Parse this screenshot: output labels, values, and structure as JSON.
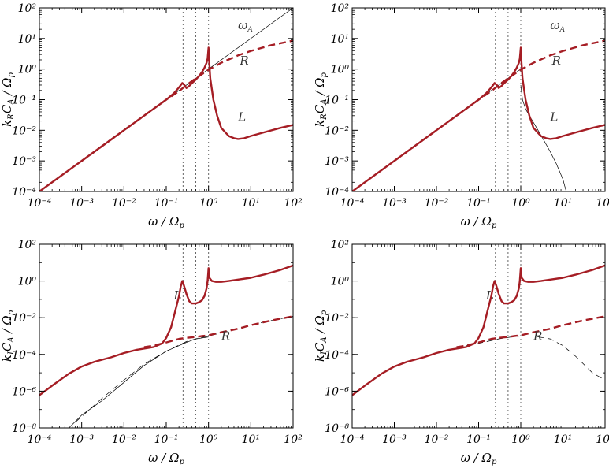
{
  "chart_data": [
    {
      "type": "line",
      "xscale": "log",
      "yscale": "log",
      "xlim": [
        0.0001,
        100
      ],
      "ylim": [
        0.0001,
        100
      ],
      "xlabel": "ω / Ωp",
      "ylabel": "kRCA / Ωp",
      "x_ticks": [
        0.0001,
        0.001,
        0.01,
        0.1,
        1,
        10,
        100
      ],
      "y_ticks": [
        0.0001,
        0.001,
        0.01,
        0.1,
        1,
        10,
        100
      ],
      "vlines": [
        0.25,
        0.5,
        1.0
      ],
      "annotations": [
        {
          "text": "ωA",
          "x": 5.0,
          "y": 20
        },
        {
          "text": "R",
          "x": 5.5,
          "y": 1.4
        },
        {
          "text": "L",
          "x": 5.0,
          "y": 0.02
        }
      ],
      "series": [
        {
          "style": "thin",
          "x": [
            0.0001,
            100
          ],
          "y": [
            0.0001,
            100
          ]
        },
        {
          "style": "thick-dashed",
          "x": [
            0.001,
            0.01,
            0.05,
            0.1,
            0.2,
            0.3,
            0.5,
            1.0,
            2.0,
            5.0,
            10,
            30,
            100
          ],
          "y": [
            0.001,
            0.01,
            0.05,
            0.1,
            0.19,
            0.3,
            0.5,
            0.95,
            1.6,
            2.8,
            3.9,
            6.0,
            8.5
          ]
        },
        {
          "style": "thick-solid",
          "x": [
            0.0001,
            0.01,
            0.05,
            0.1,
            0.15,
            0.2,
            0.24,
            0.27,
            0.3,
            0.35,
            0.4,
            0.5,
            0.6,
            0.7,
            0.8,
            0.9,
            0.95,
            0.98,
            1.0,
            1.03,
            1.1,
            1.3,
            1.6,
            2.0,
            3.0,
            4.0,
            5.0,
            7.0,
            10,
            20,
            50,
            100
          ],
          "y": [
            0.0001,
            0.01,
            0.05,
            0.1,
            0.16,
            0.25,
            0.35,
            0.3,
            0.24,
            0.28,
            0.34,
            0.45,
            0.6,
            0.8,
            1.1,
            1.6,
            2.2,
            3.5,
            5.0,
            2.0,
            0.5,
            0.1,
            0.03,
            0.012,
            0.0065,
            0.0055,
            0.0052,
            0.0055,
            0.0065,
            0.0085,
            0.012,
            0.015
          ]
        }
      ]
    },
    {
      "type": "line",
      "xscale": "log",
      "yscale": "log",
      "xlim": [
        0.0001,
        100
      ],
      "ylim": [
        0.0001,
        100
      ],
      "xlabel": "ω / Ωp",
      "ylabel": "kRCA / Ωp",
      "x_ticks": [
        0.0001,
        0.001,
        0.01,
        0.1,
        1,
        10,
        100
      ],
      "y_ticks": [
        0.0001,
        0.001,
        0.01,
        0.1,
        1,
        10,
        100
      ],
      "vlines": [
        0.25,
        0.5,
        1.0
      ],
      "annotations": [
        {
          "text": "ωA",
          "x": 5.0,
          "y": 20
        },
        {
          "text": "R",
          "x": 5.5,
          "y": 1.4
        },
        {
          "text": "L",
          "x": 5.0,
          "y": 0.02
        }
      ],
      "series": [
        {
          "style": "thin",
          "x": [
            0.0001,
            0.3,
            0.6,
            0.8,
            0.9,
            0.95,
            0.98
          ],
          "y": [
            0.0001,
            0.3,
            0.6,
            0.8,
            0.9,
            0.95,
            0.98
          ]
        },
        {
          "style": "thin",
          "x": [
            1.0,
            1.1,
            1.3,
            1.6,
            2.0,
            3.0,
            5.0,
            7.0,
            10,
            12
          ],
          "y": [
            0.3,
            0.1,
            0.05,
            0.03,
            0.018,
            0.007,
            0.002,
            0.0008,
            0.00025,
            0.0001
          ]
        },
        {
          "style": "thick-dashed",
          "x": [
            0.001,
            0.01,
            0.05,
            0.1,
            0.2,
            0.3,
            0.5,
            1.0,
            2.0,
            5.0,
            10,
            30,
            100
          ],
          "y": [
            0.001,
            0.01,
            0.05,
            0.1,
            0.19,
            0.3,
            0.5,
            0.95,
            1.6,
            2.8,
            3.9,
            6.0,
            8.5
          ]
        },
        {
          "style": "thick-solid",
          "x": [
            0.0001,
            0.01,
            0.05,
            0.1,
            0.15,
            0.2,
            0.24,
            0.27,
            0.3,
            0.35,
            0.4,
            0.5,
            0.6,
            0.7,
            0.8,
            0.9,
            0.95,
            0.98,
            1.0,
            1.03,
            1.1,
            1.3,
            1.6,
            2.0,
            3.0,
            4.0,
            5.0,
            7.0,
            10,
            20,
            50,
            100
          ],
          "y": [
            0.0001,
            0.01,
            0.05,
            0.1,
            0.16,
            0.25,
            0.35,
            0.3,
            0.24,
            0.28,
            0.34,
            0.45,
            0.6,
            0.8,
            1.1,
            1.6,
            2.2,
            3.5,
            5.0,
            2.0,
            0.5,
            0.1,
            0.03,
            0.012,
            0.0065,
            0.0055,
            0.0052,
            0.0055,
            0.0065,
            0.0085,
            0.012,
            0.015
          ]
        }
      ]
    },
    {
      "type": "line",
      "xscale": "log",
      "yscale": "log",
      "xlim": [
        0.0001,
        100
      ],
      "ylim": [
        1e-08,
        100
      ],
      "xlabel": "ω / Ωp",
      "ylabel": "kICA / Ωp",
      "x_ticks": [
        0.0001,
        0.001,
        0.01,
        0.1,
        1,
        10,
        100
      ],
      "y_ticks": [
        1e-08,
        1e-06,
        0.0001,
        0.01,
        1,
        100
      ],
      "vlines": [
        0.25,
        0.5,
        1.0
      ],
      "annotations": [
        {
          "text": "L",
          "x": 0.15,
          "y": 0.1
        },
        {
          "text": "R",
          "x": 2.0,
          "y": 0.0006
        }
      ],
      "series": [
        {
          "style": "thin-solid",
          "x": [
            0.0005,
            0.001,
            0.003,
            0.01,
            0.03,
            0.1,
            0.3,
            0.5,
            1.0
          ],
          "y": [
            1e-08,
            5e-08,
            3e-07,
            3e-06,
            2.5e-05,
            0.00015,
            0.00045,
            0.0007,
            0.0009
          ]
        },
        {
          "style": "thin-dashed",
          "x": [
            0.0007,
            0.003,
            0.01,
            0.03,
            0.1,
            0.3,
            0.6,
            1.0,
            2.0,
            5.0,
            10,
            30,
            100
          ],
          "y": [
            2e-08,
            4e-07,
            4e-06,
            3e-05,
            0.00015,
            0.0005,
            0.0008,
            0.001,
            0.0015,
            0.0025,
            0.004,
            0.007,
            0.012
          ]
        },
        {
          "style": "thick-dashed",
          "x": [
            0.03,
            0.05,
            0.1,
            0.2,
            0.3,
            0.5,
            0.7,
            1.0,
            2.0,
            5.0,
            10,
            30,
            100
          ],
          "y": [
            0.00025,
            0.0003,
            0.00045,
            0.0007,
            0.0008,
            0.0009,
            0.001,
            0.0011,
            0.0016,
            0.0025,
            0.0039,
            0.007,
            0.012
          ]
        },
        {
          "style": "thick-solid",
          "x": [
            0.0001,
            0.0002,
            0.0005,
            0.001,
            0.002,
            0.005,
            0.01,
            0.02,
            0.05,
            0.08,
            0.1,
            0.13,
            0.16,
            0.2,
            0.22,
            0.24,
            0.26,
            0.3,
            0.35,
            0.4,
            0.5,
            0.6,
            0.7,
            0.8,
            0.9,
            0.95,
            0.98,
            1.0,
            1.05,
            1.2,
            1.5,
            2.0,
            3.0,
            5.0,
            10,
            20,
            50,
            100
          ],
          "y": [
            6e-07,
            2e-06,
            9e-06,
            2.2e-05,
            4e-05,
            7e-05,
            0.00012,
            0.00018,
            0.00025,
            0.0004,
            0.0008,
            0.003,
            0.02,
            0.15,
            0.5,
            1.0,
            0.6,
            0.2,
            0.08,
            0.06,
            0.06,
            0.07,
            0.09,
            0.15,
            0.4,
            1.0,
            2.5,
            5.0,
            1.5,
            1.0,
            0.9,
            0.9,
            1.0,
            1.2,
            1.5,
            2.2,
            4.0,
            7.0
          ]
        }
      ]
    },
    {
      "type": "line",
      "xscale": "log",
      "yscale": "log",
      "xlim": [
        0.0001,
        100
      ],
      "ylim": [
        1e-08,
        100
      ],
      "xlabel": "ω / Ωp",
      "ylabel": "kICA / Ωp",
      "x_ticks": [
        0.0001,
        0.001,
        0.01,
        0.1,
        1,
        10,
        100
      ],
      "y_ticks": [
        1e-08,
        1e-06,
        0.0001,
        0.01,
        1,
        100
      ],
      "vlines": [
        0.25,
        0.5,
        1.0
      ],
      "annotations": [
        {
          "text": "L",
          "x": 0.15,
          "y": 0.1
        },
        {
          "text": "R",
          "x": 2.0,
          "y": 0.0006
        }
      ],
      "series": [
        {
          "style": "thin-dashed",
          "x": [
            0.03,
            0.1,
            0.3,
            0.6,
            1.0,
            2.0,
            5.0,
            10,
            20,
            50,
            100
          ],
          "y": [
            0.00025,
            0.0004,
            0.0007,
            0.0009,
            0.001,
            0.001,
            0.0007,
            0.0003,
            8e-05,
            1e-05,
            4e-06
          ]
        },
        {
          "style": "thick-dashed",
          "x": [
            0.03,
            0.05,
            0.1,
            0.2,
            0.3,
            0.5,
            0.7,
            1.0,
            2.0,
            5.0,
            10,
            30,
            100
          ],
          "y": [
            0.00025,
            0.0003,
            0.00045,
            0.0007,
            0.0008,
            0.0009,
            0.001,
            0.0011,
            0.0016,
            0.0025,
            0.0039,
            0.007,
            0.012
          ]
        },
        {
          "style": "thick-solid",
          "x": [
            0.0001,
            0.0002,
            0.0005,
            0.001,
            0.002,
            0.005,
            0.01,
            0.02,
            0.05,
            0.08,
            0.1,
            0.13,
            0.16,
            0.2,
            0.22,
            0.24,
            0.26,
            0.3,
            0.35,
            0.4,
            0.5,
            0.6,
            0.7,
            0.8,
            0.9,
            0.95,
            0.98,
            1.0,
            1.05,
            1.2,
            1.5,
            2.0,
            3.0,
            5.0,
            10,
            20,
            50,
            100
          ],
          "y": [
            6e-07,
            2e-06,
            9e-06,
            2.2e-05,
            4e-05,
            7e-05,
            0.00012,
            0.00018,
            0.00025,
            0.0004,
            0.0008,
            0.003,
            0.02,
            0.15,
            0.5,
            1.0,
            0.6,
            0.2,
            0.08,
            0.06,
            0.06,
            0.07,
            0.09,
            0.15,
            0.4,
            1.0,
            2.5,
            5.0,
            1.5,
            1.0,
            0.9,
            0.9,
            1.0,
            1.2,
            1.5,
            2.2,
            4.0,
            7.0
          ]
        }
      ]
    }
  ],
  "colors": {
    "thick": "#a51d24",
    "thin": "#000000",
    "vline": "#666666",
    "axis": "#000000"
  }
}
